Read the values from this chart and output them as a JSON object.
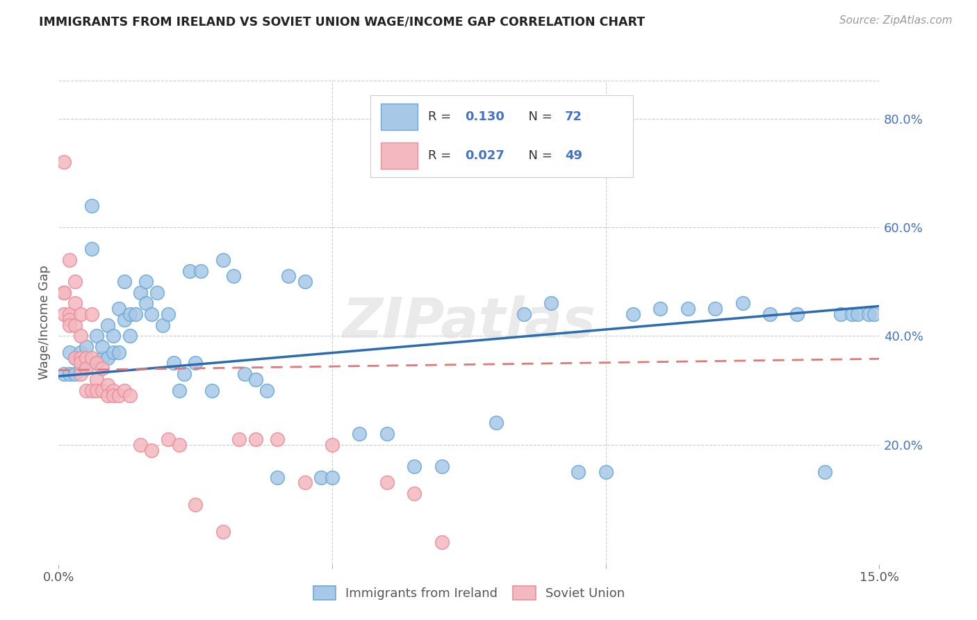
{
  "title": "IMMIGRANTS FROM IRELAND VS SOVIET UNION WAGE/INCOME GAP CORRELATION CHART",
  "source": "Source: ZipAtlas.com",
  "ylabel": "Wage/Income Gap",
  "xlim": [
    0.0,
    0.15
  ],
  "ylim": [
    -0.02,
    0.87
  ],
  "xticks": [
    0.0,
    0.05,
    0.1,
    0.15
  ],
  "xticklabels": [
    "0.0%",
    "",
    "",
    "15.0%"
  ],
  "yticks": [
    0.2,
    0.4,
    0.6,
    0.8
  ],
  "yticklabels": [
    "20.0%",
    "40.0%",
    "60.0%",
    "80.0%"
  ],
  "ireland_color": "#a8c8e8",
  "ireland_edge": "#6aaad4",
  "soviet_color": "#f4b8c0",
  "soviet_edge": "#e8909a",
  "trend_ireland_color": "#2b6cb0",
  "trend_soviet_color": "#e07878",
  "ireland_R": 0.13,
  "ireland_N": 72,
  "soviet_R": 0.027,
  "soviet_N": 49,
  "legend_label_ireland": "Immigrants from Ireland",
  "legend_label_soviet": "Soviet Union",
  "watermark": "ZIPatlas",
  "background_color": "#ffffff",
  "grid_color": "#cccccc",
  "ireland_x": [
    0.001,
    0.002,
    0.002,
    0.003,
    0.003,
    0.004,
    0.004,
    0.005,
    0.005,
    0.006,
    0.006,
    0.007,
    0.007,
    0.008,
    0.008,
    0.009,
    0.009,
    0.01,
    0.01,
    0.011,
    0.011,
    0.012,
    0.012,
    0.013,
    0.013,
    0.014,
    0.015,
    0.016,
    0.016,
    0.017,
    0.018,
    0.019,
    0.02,
    0.021,
    0.022,
    0.023,
    0.024,
    0.025,
    0.026,
    0.028,
    0.03,
    0.032,
    0.034,
    0.036,
    0.038,
    0.04,
    0.042,
    0.045,
    0.048,
    0.05,
    0.055,
    0.06,
    0.065,
    0.07,
    0.08,
    0.085,
    0.09,
    0.095,
    0.1,
    0.105,
    0.11,
    0.115,
    0.12,
    0.125,
    0.13,
    0.135,
    0.14,
    0.143,
    0.145,
    0.146,
    0.148,
    0.149
  ],
  "ireland_y": [
    0.33,
    0.37,
    0.33,
    0.36,
    0.33,
    0.37,
    0.34,
    0.35,
    0.38,
    0.64,
    0.56,
    0.35,
    0.4,
    0.36,
    0.38,
    0.36,
    0.42,
    0.37,
    0.4,
    0.45,
    0.37,
    0.5,
    0.43,
    0.44,
    0.4,
    0.44,
    0.48,
    0.46,
    0.5,
    0.44,
    0.48,
    0.42,
    0.44,
    0.35,
    0.3,
    0.33,
    0.52,
    0.35,
    0.52,
    0.3,
    0.54,
    0.51,
    0.33,
    0.32,
    0.3,
    0.14,
    0.51,
    0.5,
    0.14,
    0.14,
    0.22,
    0.22,
    0.16,
    0.16,
    0.24,
    0.44,
    0.46,
    0.15,
    0.15,
    0.44,
    0.45,
    0.45,
    0.45,
    0.46,
    0.44,
    0.44,
    0.15,
    0.44,
    0.44,
    0.44,
    0.44,
    0.44
  ],
  "soviet_x": [
    0.001,
    0.001,
    0.001,
    0.001,
    0.002,
    0.002,
    0.002,
    0.002,
    0.003,
    0.003,
    0.003,
    0.003,
    0.004,
    0.004,
    0.004,
    0.004,
    0.004,
    0.005,
    0.005,
    0.005,
    0.006,
    0.006,
    0.006,
    0.007,
    0.007,
    0.007,
    0.008,
    0.008,
    0.009,
    0.009,
    0.01,
    0.01,
    0.011,
    0.012,
    0.013,
    0.015,
    0.017,
    0.02,
    0.022,
    0.025,
    0.03,
    0.033,
    0.036,
    0.04,
    0.045,
    0.05,
    0.06,
    0.065,
    0.07
  ],
  "soviet_y": [
    0.72,
    0.48,
    0.44,
    0.48,
    0.54,
    0.44,
    0.43,
    0.42,
    0.5,
    0.46,
    0.42,
    0.36,
    0.44,
    0.4,
    0.36,
    0.35,
    0.33,
    0.36,
    0.34,
    0.3,
    0.36,
    0.3,
    0.44,
    0.35,
    0.32,
    0.3,
    0.34,
    0.3,
    0.31,
    0.29,
    0.3,
    0.29,
    0.29,
    0.3,
    0.29,
    0.2,
    0.19,
    0.21,
    0.2,
    0.09,
    0.04,
    0.21,
    0.21,
    0.21,
    0.13,
    0.2,
    0.13,
    0.11,
    0.02
  ],
  "trend_ire_x0": 0.0,
  "trend_ire_y0": 0.326,
  "trend_ire_x1": 0.15,
  "trend_ire_y1": 0.455,
  "trend_sov_x0": 0.0,
  "trend_sov_y0": 0.337,
  "trend_sov_x1": 0.15,
  "trend_sov_y1": 0.358
}
